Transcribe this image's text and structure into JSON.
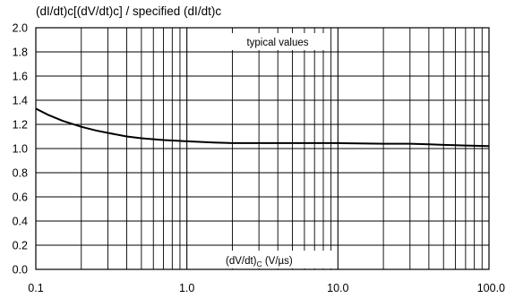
{
  "chart_data": {
    "type": "line",
    "title": "(dI/dt)c[(dV/dt)c] / specified (dI/dt)c",
    "annotation": "typical values",
    "xlabel": "(dV/dt)",
    "xlabel_sub": "C",
    "xlabel_unit": " (V/µs)",
    "x_scale": "log",
    "xlim": [
      0.1,
      100
    ],
    "ylim": [
      0,
      2
    ],
    "x_ticks": [
      "0.1",
      "1.0",
      "10.0",
      "100.0"
    ],
    "y_ticks": [
      "0.0",
      "0.2",
      "0.4",
      "0.6",
      "0.8",
      "1.0",
      "1.2",
      "1.4",
      "1.6",
      "1.8",
      "2.0"
    ],
    "grid": true,
    "series": [
      {
        "x": [
          0.1,
          0.12,
          0.15,
          0.2,
          0.25,
          0.3,
          0.4,
          0.5,
          0.7,
          1.0,
          1.5,
          2,
          3,
          5,
          10,
          20,
          30,
          40,
          50,
          70,
          100
        ],
        "y": [
          1.33,
          1.28,
          1.23,
          1.18,
          1.15,
          1.13,
          1.1,
          1.085,
          1.07,
          1.06,
          1.05,
          1.045,
          1.045,
          1.045,
          1.045,
          1.04,
          1.04,
          1.035,
          1.03,
          1.025,
          1.02
        ]
      }
    ]
  }
}
